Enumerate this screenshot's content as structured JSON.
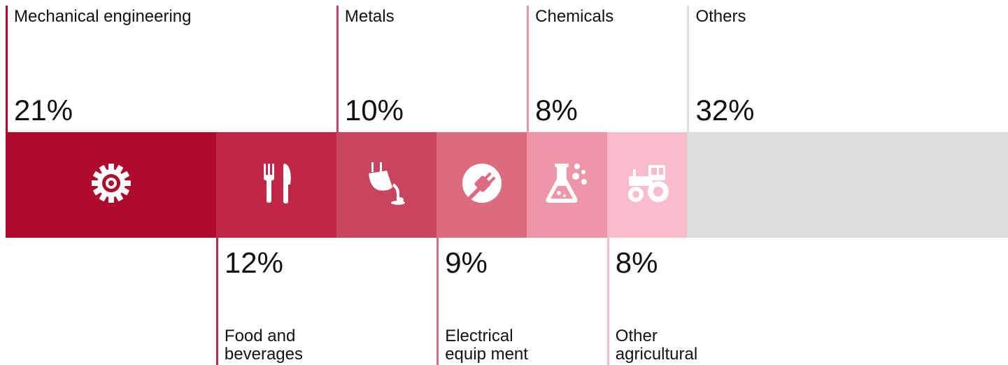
{
  "chart_data": {
    "type": "bar",
    "orientation": "horizontal-stacked",
    "categories": [
      "Mechanical engineering",
      "Food and beverages",
      "Metals",
      "Electrical equip ment",
      "Chemicals",
      "Other agricultural",
      "Others"
    ],
    "values": [
      21,
      12,
      10,
      9,
      8,
      8,
      32
    ],
    "value_labels": [
      "21%",
      "12%",
      "10%",
      "9%",
      "8%",
      "8%",
      "32%"
    ],
    "label_position": [
      "top",
      "bottom",
      "top",
      "bottom",
      "top",
      "bottom",
      "top"
    ],
    "icons": [
      "gear-icon",
      "cutlery-icon",
      "ladle-pour-icon",
      "plug-icon",
      "flask-icon",
      "tractor-icon",
      ""
    ],
    "colors": [
      "#b00a2d",
      "#c02648",
      "#c8445f",
      "#dc6b80",
      "#ee96a7",
      "#f9bccb",
      "#dcdcdc"
    ]
  }
}
